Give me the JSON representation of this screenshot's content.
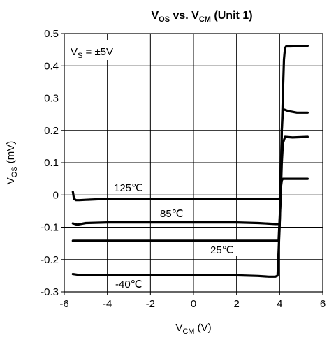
{
  "chart_data": {
    "type": "line",
    "title": {
      "main": "V",
      "sub1": "OS",
      "mid": " vs. V",
      "sub2": "CM",
      "tail": " (Unit 1)"
    },
    "xlabel": {
      "main": "V",
      "sub": "CM",
      "tail": " (V)"
    },
    "ylabel": {
      "main": "V",
      "sub": "OS",
      "tail": " (mV)"
    },
    "xlim": [
      -6,
      6
    ],
    "ylim": [
      -0.3,
      0.5
    ],
    "x_ticks": [
      "-6",
      "-4",
      "-2",
      "0",
      "2",
      "4",
      "6"
    ],
    "y_ticks": [
      "-0.3",
      "-0.2",
      "-0.1",
      "0",
      "0.1",
      "0.2",
      "0.3",
      "0.4",
      "0.5"
    ],
    "grid": true,
    "annotations": {
      "supply": {
        "main": "V",
        "sub": "S",
        "tail": " = ±5V"
      },
      "t125": "125℃",
      "t85": "85℃",
      "t25": "25℃",
      "tm40": "-40℃"
    },
    "series": [
      {
        "name": "125℃",
        "x": [
          -5.6,
          -5.55,
          -5.45,
          -5.3,
          -5.0,
          -4.0,
          -2.0,
          0.0,
          2.0,
          3.8,
          4.0,
          4.05,
          4.1,
          4.15,
          4.2,
          5.3
        ],
        "y": [
          0.01,
          -0.012,
          -0.016,
          -0.016,
          -0.015,
          -0.012,
          -0.012,
          -0.012,
          -0.012,
          -0.012,
          -0.012,
          0.02,
          0.045,
          0.05,
          0.05,
          0.05
        ]
      },
      {
        "name": "85℃",
        "x": [
          -5.6,
          -5.4,
          -5.0,
          -4.0,
          -2.0,
          0.0,
          2.0,
          3.0,
          3.8,
          4.0,
          4.05,
          4.1,
          4.15,
          4.25,
          4.6,
          5.3
        ],
        "y": [
          -0.088,
          -0.092,
          -0.087,
          -0.085,
          -0.085,
          -0.085,
          -0.085,
          -0.087,
          -0.09,
          -0.09,
          0.0,
          0.1,
          0.16,
          0.18,
          0.178,
          0.18
        ]
      },
      {
        "name": "25℃",
        "x": [
          -5.6,
          -4.0,
          -2.0,
          0.0,
          2.0,
          3.8,
          3.95,
          4.05,
          4.1,
          4.15,
          4.2,
          4.4,
          4.8,
          5.3
        ],
        "y": [
          -0.142,
          -0.142,
          -0.142,
          -0.142,
          -0.142,
          -0.142,
          -0.142,
          0.0,
          0.2,
          0.26,
          0.265,
          0.26,
          0.255,
          0.255
        ]
      },
      {
        "name": "-40℃",
        "x": [
          -5.6,
          -5.3,
          -4.0,
          -2.0,
          0.0,
          2.0,
          3.0,
          3.5,
          3.8,
          3.9,
          4.0,
          4.1,
          4.2,
          4.25,
          4.3,
          4.5,
          5.3
        ],
        "y": [
          -0.245,
          -0.248,
          -0.248,
          -0.249,
          -0.249,
          -0.249,
          -0.251,
          -0.253,
          -0.253,
          -0.25,
          -0.1,
          0.2,
          0.42,
          0.455,
          0.46,
          0.46,
          0.462
        ]
      }
    ]
  }
}
